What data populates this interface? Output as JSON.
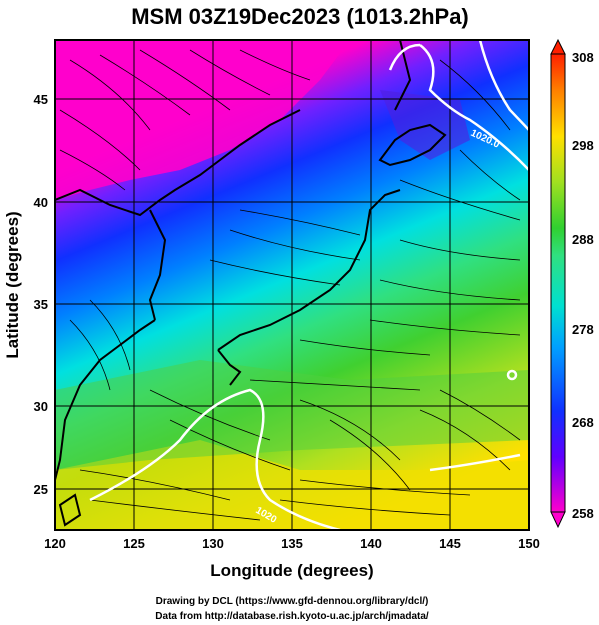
{
  "title": "MSM 03Z19Dec2023 (1013.2hPa)",
  "xaxis": {
    "label": "Longitude (degrees)",
    "min": 120,
    "max": 150,
    "ticks": [
      "120",
      "125",
      "130",
      "135",
      "140",
      "145",
      "150"
    ]
  },
  "yaxis": {
    "label": "Latitude  (degrees)",
    "min": 22.5,
    "max": 47.5,
    "ticks": [
      "25",
      "30",
      "35",
      "40",
      "45"
    ]
  },
  "colorbar": {
    "min": 258,
    "max": 308,
    "ticks": [
      "308",
      "298",
      "288",
      "278",
      "268",
      "258"
    ]
  },
  "contour_labels": [
    "1020.0",
    "1020"
  ],
  "credits": [
    "Drawing by DCL (https://www.gfd-dennou.org/library/dcl/)",
    "Data from http://database.rish.kyoto-u.ac.jp/arch/jmadata/"
  ],
  "colors": {
    "cold": "#ff00cc",
    "cool": "#1030ff",
    "mid": "#00e0d0",
    "warm": "#30d030",
    "hot": "#ffe000",
    "land": "#000000",
    "isobar": "#ffffff"
  }
}
